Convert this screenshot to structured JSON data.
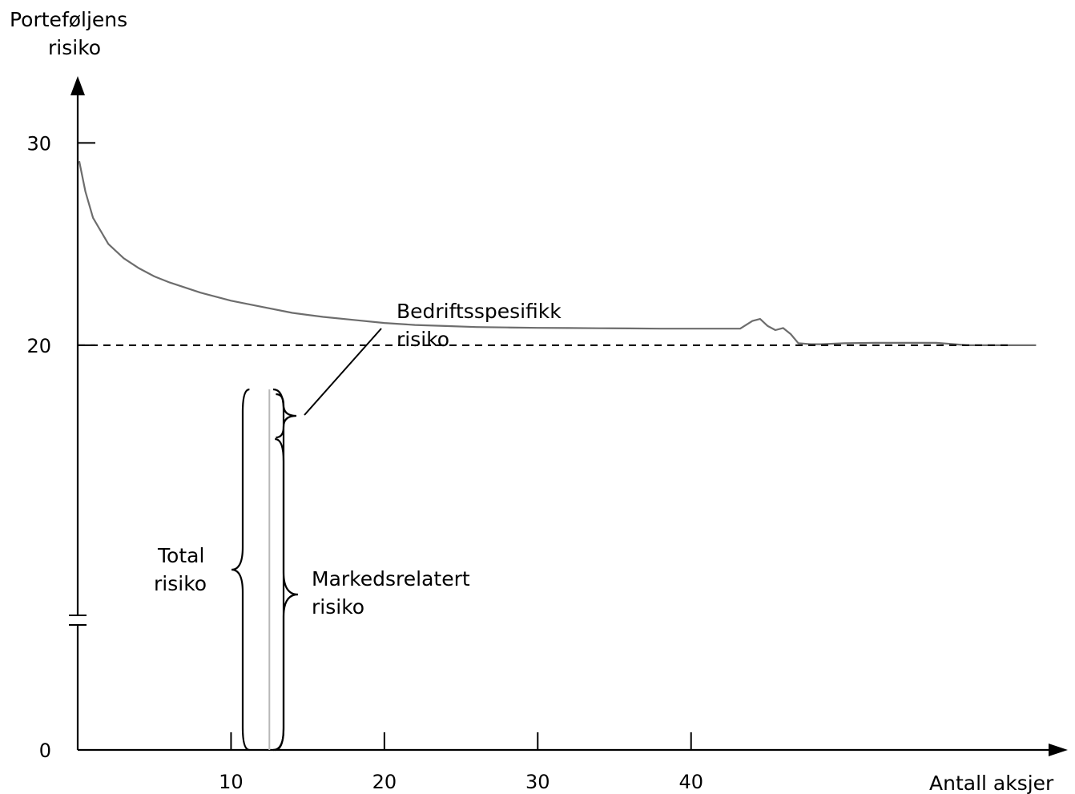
{
  "chart_data": {
    "type": "line",
    "ylabel_lines": [
      "Porteføljens",
      "risiko"
    ],
    "xlabel": "Antall aksjer",
    "x_ticks": [
      10,
      20,
      30,
      40
    ],
    "x_tick_labels": [
      "10",
      "20",
      "30",
      "40"
    ],
    "y_ticks": [
      0,
      20,
      30
    ],
    "y_tick_labels": [
      "0",
      "20",
      "30"
    ],
    "y_axis_break": true,
    "xlim": [
      0,
      63
    ],
    "ylim": [
      0,
      33.3
    ],
    "grid": false,
    "series": [
      {
        "kind": "total-risk-curve",
        "color": "#6d6d6d",
        "x": [
          0.1,
          0.5,
          1,
          2,
          3,
          4,
          5,
          6,
          8,
          10,
          12,
          14,
          16,
          18,
          20,
          22,
          24,
          26,
          28,
          30,
          32,
          34,
          36,
          38,
          40,
          42,
          43.2,
          44,
          44.5,
          45,
          45.5,
          46,
          46.5,
          47,
          47.8,
          48.5,
          50,
          52,
          54,
          56,
          58,
          60,
          62.5
        ],
        "y": [
          29.1,
          27.6,
          26.3,
          25,
          24.3,
          23.8,
          23.4,
          23.1,
          22.6,
          22.2,
          21.9,
          21.6,
          21.4,
          21.25,
          21.1,
          21,
          20.95,
          20.9,
          20.88,
          20.86,
          20.85,
          20.84,
          20.83,
          20.82,
          20.82,
          20.82,
          20.82,
          21.2,
          21.3,
          20.95,
          20.75,
          20.85,
          20.55,
          20.1,
          20.05,
          20.05,
          20.1,
          20.12,
          20.12,
          20.12,
          20.0,
          20.0,
          20.0
        ]
      },
      {
        "kind": "market-risk-level",
        "style": "dashed",
        "color": "#000000",
        "y": 20,
        "x_range": [
          0,
          63
        ]
      }
    ],
    "highlight_x": 12.5,
    "annotations": {
      "total_risk": [
        "Total",
        "risiko"
      ],
      "market_risk": [
        "Markedsrelatert",
        "risiko"
      ],
      "firm_specific_risk": [
        "Bedriftsspesifikk",
        "risiko"
      ]
    }
  }
}
